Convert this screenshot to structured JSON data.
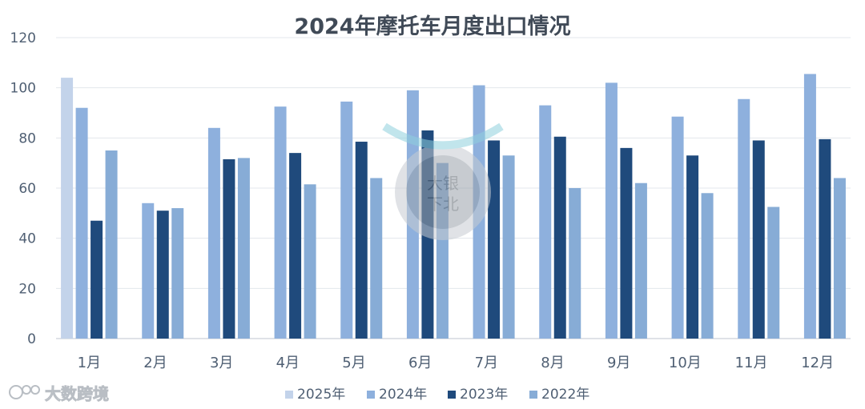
{
  "chart_data": {
    "type": "bar",
    "title": "2024年摩托车月度出口情况",
    "xlabel": "",
    "ylabel": "",
    "ylim": [
      0,
      120
    ],
    "yticks": [
      0,
      20,
      40,
      60,
      80,
      100,
      120
    ],
    "grid": true,
    "legend_position": "bottom",
    "categories": [
      "1月",
      "2月",
      "3月",
      "4月",
      "5月",
      "6月",
      "7月",
      "8月",
      "9月",
      "10月",
      "11月",
      "12月"
    ],
    "series": [
      {
        "name": "2025年",
        "color": "#c3d3ea",
        "values": [
          104,
          null,
          null,
          null,
          null,
          null,
          null,
          null,
          null,
          null,
          null,
          null
        ]
      },
      {
        "name": "2024年",
        "color": "#8eb0dd",
        "values": [
          92,
          54,
          84,
          92.5,
          94.5,
          99,
          101,
          93,
          102,
          88.5,
          95.5,
          105.5
        ]
      },
      {
        "name": "2023年",
        "color": "#1f4a7c",
        "values": [
          47,
          51,
          71.5,
          74,
          78.5,
          83,
          79,
          80.5,
          76,
          73,
          79,
          79.5
        ]
      },
      {
        "name": "2022年",
        "color": "#87acd6",
        "values": [
          75,
          52,
          72,
          61.5,
          64,
          70,
          73,
          60,
          62,
          58,
          52.5,
          64
        ]
      }
    ]
  },
  "watermark": {
    "line1": "大银",
    "line2": "下北"
  },
  "source_logo": {
    "text": "大数跨境"
  }
}
